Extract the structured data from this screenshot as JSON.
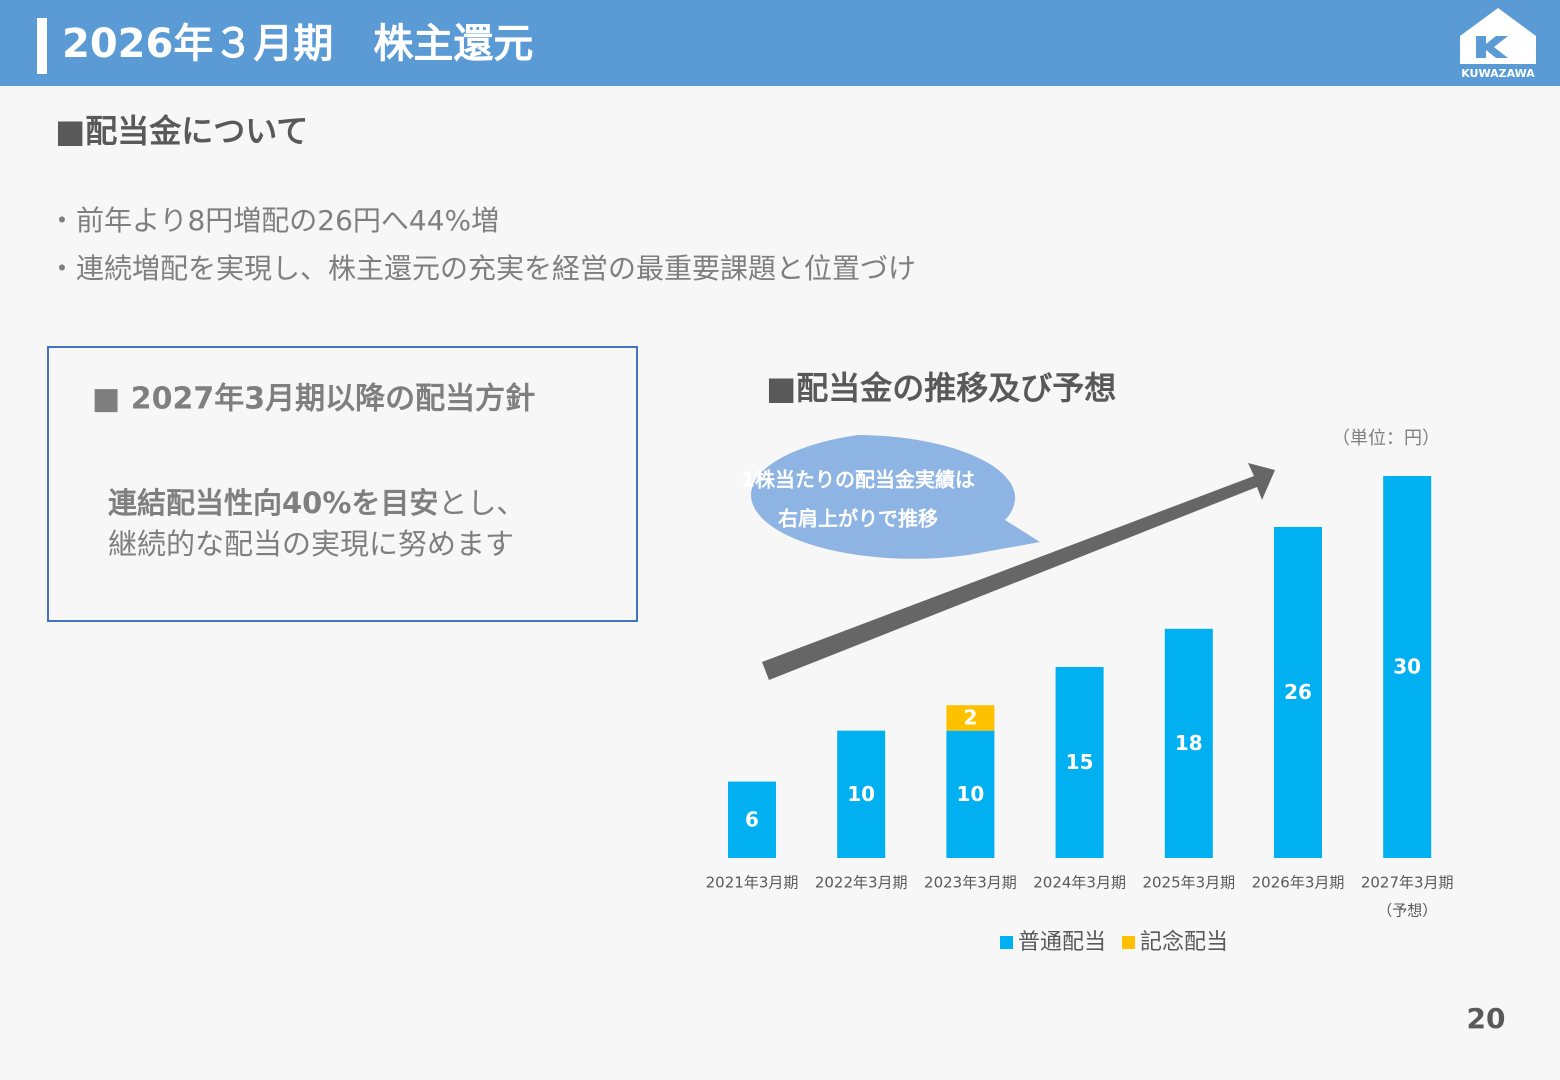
{
  "header": {
    "title": "2026年３月期　株主還元",
    "logo_text": "KUWAZAWA"
  },
  "section": {
    "title": "■配当金について"
  },
  "bullets": [
    "・前年より8円増配の26円へ44%増",
    "・連続増配を実現し、株主還元の充実を経営の最重要課題と位置づけ"
  ],
  "policy": {
    "title": "■ 2027年3月期以降の配当方針",
    "line1_bold": "連結配当性向40%を目安",
    "line1_rest": "とし、",
    "line2": "継続的な配当の実現に努めます"
  },
  "chart_data": {
    "type": "stacked_bar",
    "title": "■配当金の推移及び予想",
    "unit_label": "（単位：円）",
    "callout": [
      "1株当たりの配当金実績は",
      "右肩上がりで推移"
    ],
    "categories": [
      "2021年3月期",
      "2022年3月期",
      "2023年3月期",
      "2024年3月期",
      "2025年3月期",
      "2026年3月期",
      "2027年3月期"
    ],
    "category_sublabels": [
      null,
      null,
      null,
      null,
      null,
      null,
      "（予想）"
    ],
    "ylim": [
      0,
      30
    ],
    "series": [
      {
        "name": "普通配当",
        "color": "#00b0f0",
        "values": [
          6,
          10,
          10,
          15,
          18,
          26,
          30
        ]
      },
      {
        "name": "記念配当",
        "color": "#ffc000",
        "values": [
          null,
          null,
          2,
          null,
          null,
          null,
          null
        ]
      }
    ]
  },
  "page_number": "20"
}
